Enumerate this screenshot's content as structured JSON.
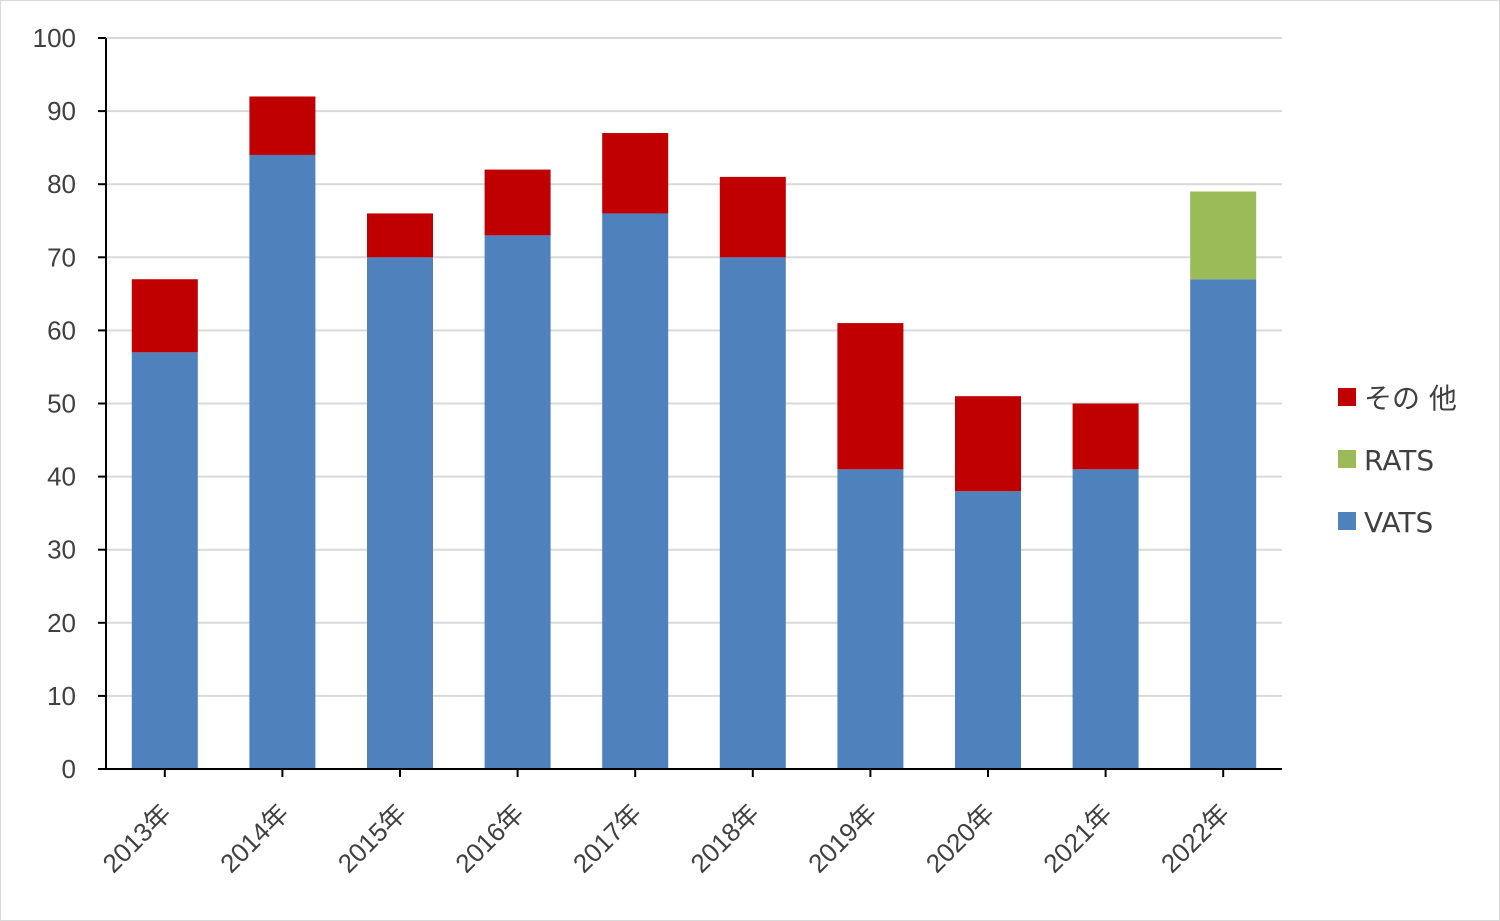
{
  "chart_data": {
    "type": "bar",
    "stacked": true,
    "categories": [
      "2013年",
      "2014年",
      "2015年",
      "2016年",
      "2017年",
      "2018年",
      "2019年",
      "2020年",
      "2021年",
      "2022年"
    ],
    "series": [
      {
        "name": "VATS",
        "color": "#4f81bd",
        "values": [
          57,
          84,
          70,
          73,
          76,
          70,
          41,
          38,
          41,
          67
        ]
      },
      {
        "name": "RATS",
        "color": "#9bbb59",
        "values": [
          0,
          0,
          0,
          0,
          0,
          0,
          0,
          0,
          0,
          12
        ]
      },
      {
        "name": "その 他",
        "color": "#c00000",
        "values": [
          10,
          8,
          6,
          9,
          11,
          11,
          20,
          13,
          9,
          0
        ]
      }
    ],
    "ylim": [
      0,
      100
    ],
    "yticks": [
      "0",
      "10",
      "20",
      "30",
      "40",
      "50",
      "60",
      "70",
      "80",
      "90",
      "100"
    ],
    "grid": true,
    "legend_position": "right",
    "legend_order": [
      "その 他",
      "RATS",
      "VATS"
    ],
    "title": "",
    "xlabel": "",
    "ylabel": ""
  }
}
